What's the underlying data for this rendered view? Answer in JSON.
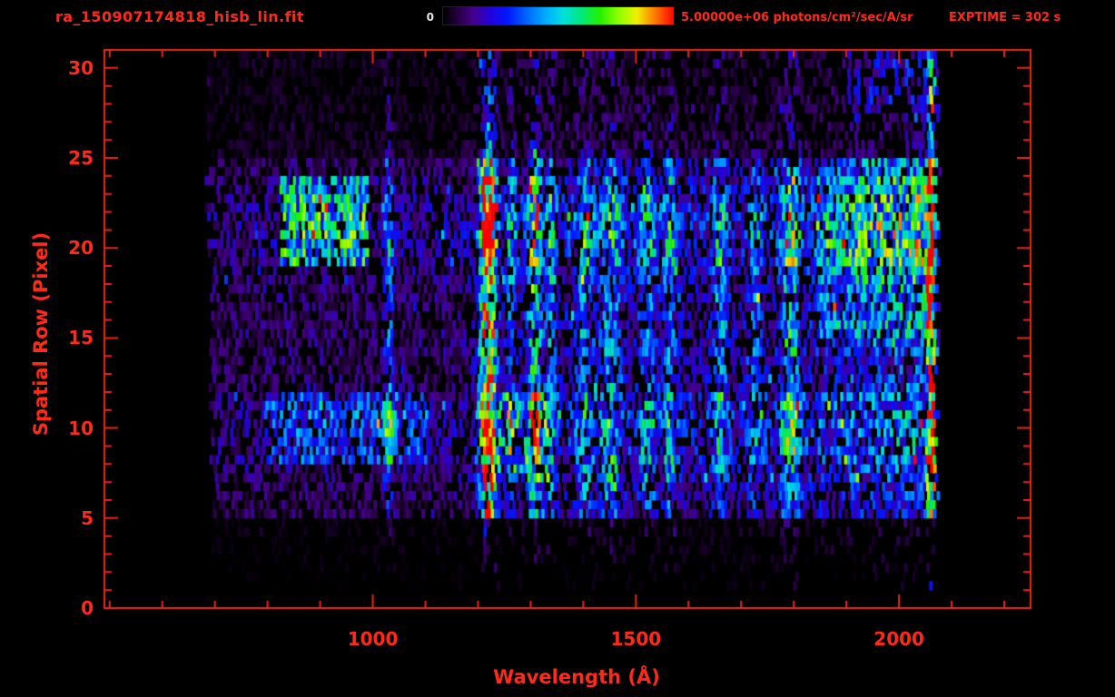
{
  "header": {
    "filename": "ra_150907174818_hisb_lin.fit",
    "colorbar": {
      "min_label": "0",
      "max_label": "5.00000e+06 photons/cm²/sec/A/sr"
    },
    "exptime_label": "EXPTIME = 302 s"
  },
  "chart_data": {
    "type": "heatmap",
    "title": "ra_150907174818_hisb_lin.fit",
    "xlabel": "Wavelength (Å)",
    "ylabel": "Spatial Row (Pixel)",
    "x_axis": {
      "min": 490,
      "max": 2250,
      "major_ticks": [
        1000,
        1500,
        2000
      ],
      "minor_tick_step": 100
    },
    "y_axis": {
      "min": 0,
      "max": 31,
      "major_ticks": [
        0,
        5,
        10,
        15,
        20,
        25,
        30
      ],
      "minor_tick_step": 1
    },
    "color_scale": {
      "min": 0,
      "max": 5000000,
      "units": "photons/cm2/sec/A/sr",
      "stops": [
        [
          0.0,
          "#000000"
        ],
        [
          0.06,
          "#23003c"
        ],
        [
          0.13,
          "#46008c"
        ],
        [
          0.2,
          "#2600d8"
        ],
        [
          0.28,
          "#0018ff"
        ],
        [
          0.36,
          "#0063ff"
        ],
        [
          0.44,
          "#00a8ff"
        ],
        [
          0.52,
          "#00e0e0"
        ],
        [
          0.6,
          "#00e87a"
        ],
        [
          0.68,
          "#25f000"
        ],
        [
          0.76,
          "#8cff00"
        ],
        [
          0.84,
          "#f0f000"
        ],
        [
          0.92,
          "#ff7800"
        ],
        [
          1.0,
          "#ff0000"
        ]
      ]
    },
    "exptime_s": 302,
    "data_extent": {
      "wavelength": [
        675,
        2070
      ],
      "rows": [
        1,
        30
      ]
    },
    "row_profile": [
      0.0,
      0.07,
      0.1,
      0.12,
      0.16,
      0.58,
      0.66,
      0.78,
      0.88,
      0.92,
      0.95,
      0.88,
      0.72,
      0.66,
      0.7,
      0.72,
      0.66,
      0.7,
      0.78,
      0.92,
      1.0,
      0.97,
      0.92,
      0.82,
      0.62,
      0.3,
      0.26,
      0.24,
      0.24,
      0.22,
      0.24
    ],
    "continuum": [
      [
        675,
        0.13
      ],
      [
        820,
        0.16
      ],
      [
        1000,
        0.15
      ],
      [
        1150,
        0.16
      ],
      [
        1240,
        0.2
      ],
      [
        1380,
        0.24
      ],
      [
        1650,
        0.23
      ],
      [
        1760,
        0.23
      ],
      [
        1880,
        0.32
      ],
      [
        1960,
        0.38
      ],
      [
        2040,
        0.42
      ],
      [
        2070,
        0.34
      ]
    ],
    "emission_lines": [
      {
        "wavelength": 1027,
        "sigma": 6,
        "amplitude": 0.3
      },
      {
        "wavelength": 1216,
        "sigma": 10,
        "amplitude": 1.15
      },
      {
        "wavelength": 1260,
        "sigma": 7,
        "amplitude": 0.26
      },
      {
        "wavelength": 1304,
        "sigma": 9,
        "amplitude": 0.5
      },
      {
        "wavelength": 1335,
        "sigma": 7,
        "amplitude": 0.28
      },
      {
        "wavelength": 1400,
        "sigma": 12,
        "amplitude": 0.24
      },
      {
        "wavelength": 1450,
        "sigma": 13,
        "amplitude": 0.3
      },
      {
        "wavelength": 1520,
        "sigma": 11,
        "amplitude": 0.25
      },
      {
        "wavelength": 1561,
        "sigma": 8,
        "amplitude": 0.27
      },
      {
        "wavelength": 1657,
        "sigma": 9,
        "amplitude": 0.28
      },
      {
        "wavelength": 1725,
        "sigma": 9,
        "amplitude": 0.2
      },
      {
        "wavelength": 1790,
        "sigma": 11,
        "amplitude": 0.45
      },
      {
        "wavelength": 2058,
        "sigma": 5,
        "amplitude": 0.9
      }
    ],
    "blobs": [
      {
        "rows": [
          19,
          23
        ],
        "wavelengths": [
          820,
          990
        ],
        "amplitude": 0.34
      },
      {
        "rows": [
          8,
          11
        ],
        "wavelengths": [
          790,
          1100
        ],
        "amplitude": 0.16
      },
      {
        "rows": [
          7,
          11
        ],
        "wavelengths": [
          1235,
          1330
        ],
        "amplitude": 0.18
      },
      {
        "rows": [
          15,
          24
        ],
        "wavelengths": [
          1840,
          2060
        ],
        "amplitude": 0.18
      }
    ],
    "noise_seed": 42
  },
  "style": {
    "label_color": "#ff2a1a",
    "axis_color": "#e8281a",
    "background": "#000000",
    "colorbar_zero_color": "#e8e8e8"
  }
}
